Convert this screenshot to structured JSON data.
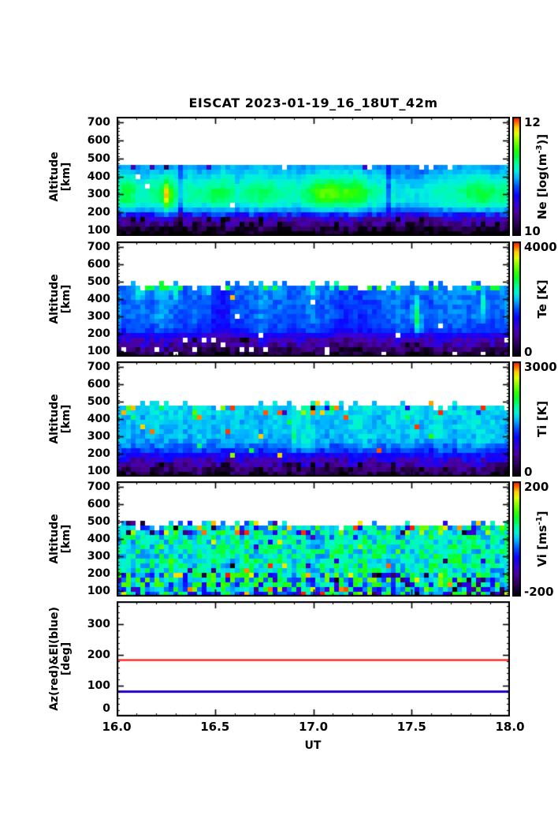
{
  "title": "EISCAT 2023-01-19_16_18UT_42m",
  "chart_data": {
    "type": "heatmap",
    "description": "EISCAT 42m radar UT-altitude spectrograms: Ne, Te, Ti, Vi plus constant Az/El pointing lines",
    "x_axis": {
      "label": "UT",
      "min": 16.0,
      "max": 18.0,
      "ticks": [
        16.0,
        16.5,
        17.0,
        17.5,
        18.0
      ],
      "tick_labels": [
        "16.0",
        "16.5",
        "17.0",
        "17.5",
        "18.0"
      ],
      "minor_step": 0.1
    },
    "altitude_axis": {
      "label_line1": "Altitude",
      "label_line2": "[km]",
      "ymin": 70,
      "ymax": 730,
      "ticks": [
        700,
        600,
        500,
        400,
        300,
        200,
        100
      ],
      "tick_labels": [
        "700",
        "600",
        "500",
        "400",
        "300",
        "200",
        "100"
      ],
      "minor_step": 20
    },
    "panels": [
      {
        "id": "ne",
        "cb_label_pre": "Ne [log(m",
        "cb_label_sup": "-3",
        "cb_label_post": ")]",
        "cb_top": "12",
        "cb_bottom": "10",
        "vmin": 10,
        "vmax": 12,
        "gen": {
          "seed": 11,
          "profile": [
            [
              70,
              10.02
            ],
            [
              100,
              10.06
            ],
            [
              120,
              10.3
            ],
            [
              150,
              10.38
            ],
            [
              175,
              10.58
            ],
            [
              200,
              10.85
            ],
            [
              225,
              11.05
            ],
            [
              260,
              11.18
            ],
            [
              320,
              11.22
            ],
            [
              380,
              11.12
            ],
            [
              430,
              11.0
            ],
            [
              470,
              10.95
            ],
            [
              520,
              10.92
            ]
          ],
          "col_amp": 0.09,
          "noise": 0.05,
          "noise_boost_alt": 205,
          "noise_boost": 3.2,
          "top_alt_base": 455,
          "top_alt_jitter": 18,
          "short_col_prob": 0.08,
          "short_col_drop": 28,
          "features": [
            [
              16.255,
              0.016,
              300,
              72,
              0.48
            ],
            [
              16.26,
              0.05,
              300,
              95,
              0.22
            ],
            [
              17.08,
              0.1,
              305,
              80,
              0.3
            ],
            [
              17.22,
              0.055,
              310,
              70,
              0.2
            ],
            [
              16.5,
              0.07,
              300,
              60,
              0.12
            ],
            [
              16.05,
              0.035,
              310,
              85,
              0.16
            ],
            [
              17.87,
              0.09,
              300,
              75,
              0.16
            ],
            [
              16.75,
              0.05,
              290,
              60,
              0.07
            ],
            [
              17.5,
              0.1,
              300,
              220,
              -0.1
            ],
            [
              16.33,
              0.012,
              300,
              220,
              -0.3
            ],
            [
              17.38,
              0.012,
              300,
              220,
              -0.25
            ],
            [
              16.62,
              0.01,
              300,
              220,
              -0.15
            ]
          ],
          "outliers": [
            {
              "amin": 0,
              "amax": 185,
              "prob": 0.1,
              "lo": 0.0,
              "hi": 0.04
            },
            {
              "amin": 0,
              "amax": 185,
              "prob": 0.035,
              "white": true
            },
            {
              "amin": 425,
              "amax": 520,
              "prob": 0.06,
              "lo": 0.08,
              "hi": 0.28
            },
            {
              "amin": 200,
              "amax": 425,
              "prob": 0.006,
              "white": true
            }
          ]
        }
      },
      {
        "id": "te",
        "cb_label_pre": "Te [K]",
        "cb_label_sup": "",
        "cb_label_post": "",
        "cb_top": "4000",
        "cb_bottom": "0",
        "vmin": 0,
        "vmax": 4000,
        "gen": {
          "seed": 23,
          "profile": [
            [
              70,
              260
            ],
            [
              105,
              430
            ],
            [
              130,
              720
            ],
            [
              160,
              880
            ],
            [
              190,
              1180
            ],
            [
              220,
              1520
            ],
            [
              300,
              1680
            ],
            [
              380,
              1680
            ],
            [
              470,
              1780
            ],
            [
              520,
              1800
            ]
          ],
          "col_amp": 330,
          "noise": 130,
          "noise_boost_alt": 185,
          "noise_boost": 2.6,
          "top_alt_base": 478,
          "top_alt_jitter": 16,
          "short_col_prob": 0.1,
          "short_col_drop": 34,
          "features": [
            [
              16.02,
              0.008,
              320,
              130,
              900
            ],
            [
              16.12,
              0.012,
              435,
              40,
              900
            ],
            [
              17.52,
              0.012,
              320,
              90,
              1200
            ],
            [
              17.54,
              0.02,
              250,
              60,
              500
            ],
            [
              17.86,
              0.01,
              360,
              80,
              700
            ],
            [
              16.46,
              0.012,
              445,
              35,
              800
            ],
            [
              16.3,
              0.01,
              440,
              40,
              600
            ],
            [
              17.0,
              0.012,
              450,
              30,
              500
            ]
          ],
          "outliers": [
            {
              "amin": 440,
              "amax": 520,
              "prob": 0.22,
              "lo": 0.58,
              "hi": 0.72
            },
            {
              "amin": 400,
              "amax": 470,
              "prob": 0.01,
              "lo": 0.92,
              "hi": 1.0
            },
            {
              "amin": 0,
              "amax": 170,
              "prob": 0.05,
              "white": true
            },
            {
              "amin": 0,
              "amax": 170,
              "prob": 0.08,
              "lo": 0.0,
              "hi": 0.05
            },
            {
              "amin": 170,
              "amax": 440,
              "prob": 0.01,
              "white": true
            }
          ]
        }
      },
      {
        "id": "ti",
        "cb_label_pre": "Ti [K]",
        "cb_label_sup": "",
        "cb_label_post": "",
        "cb_top": "3000",
        "cb_bottom": "0",
        "vmin": 0,
        "vmax": 3000,
        "gen": {
          "seed": 37,
          "profile": [
            [
              70,
              200
            ],
            [
              105,
              340
            ],
            [
              130,
              540
            ],
            [
              160,
              720
            ],
            [
              190,
              980
            ],
            [
              230,
              1280
            ],
            [
              280,
              1480
            ],
            [
              470,
              1560
            ],
            [
              520,
              1560
            ]
          ],
          "col_amp": 210,
          "noise": 130,
          "noise_boost_alt": 185,
          "noise_boost": 2.2,
          "top_alt_base": 480,
          "top_alt_jitter": 14,
          "short_col_prob": 0.08,
          "short_col_drop": 30,
          "features": [
            [
              16.4,
              0.012,
              430,
              30,
              900
            ],
            [
              17.1,
              0.01,
              460,
              25,
              800
            ],
            [
              16.9,
              0.015,
              300,
              60,
              300
            ],
            [
              17.6,
              0.02,
              250,
              70,
              -250
            ]
          ],
          "outliers": [
            {
              "amin": 420,
              "amax": 520,
              "prob": 0.05,
              "lo": 0.9,
              "hi": 1.0
            },
            {
              "amin": 420,
              "amax": 520,
              "prob": 0.12,
              "lo": 0.0,
              "hi": 1.0
            },
            {
              "amin": 150,
              "amax": 420,
              "prob": 0.012,
              "lo": 0.9,
              "hi": 1.0
            },
            {
              "amin": 150,
              "amax": 420,
              "prob": 0.02,
              "lo": 0.6,
              "hi": 0.8
            },
            {
              "amin": 0,
              "amax": 150,
              "prob": 0.07,
              "lo": 0.0,
              "hi": 0.05
            },
            {
              "amin": 0,
              "amax": 150,
              "prob": 0.05,
              "white": true
            },
            {
              "amin": 150,
              "amax": 300,
              "prob": 0.015,
              "white": true
            }
          ]
        }
      },
      {
        "id": "vi",
        "cb_label_pre": "Vi [ms",
        "cb_label_sup": "-1",
        "cb_label_post": "]",
        "cb_top": "200",
        "cb_bottom": "-200",
        "vmin": -200,
        "vmax": 200,
        "gen": {
          "seed": 51,
          "profile": [
            [
              70,
              0
            ],
            [
              150,
              15
            ],
            [
              250,
              35
            ],
            [
              350,
              30
            ],
            [
              520,
              20
            ]
          ],
          "col_amp": 22,
          "noise": 48,
          "noise_boost_alt": 215,
          "noise_boost": 2.0,
          "top_alt_base": 480,
          "top_alt_jitter": 14,
          "short_col_prob": 0.06,
          "short_col_drop": 26,
          "features": [],
          "outliers": [
            {
              "amin": 435,
              "amax": 520,
              "prob": 0.5,
              "lo": 0.0,
              "hi": 1.0
            },
            {
              "amin": 215,
              "amax": 435,
              "prob": 0.05,
              "lo": 0.0,
              "hi": 1.0
            },
            {
              "amin": 130,
              "amax": 215,
              "prob": 0.2,
              "lo": 0.0,
              "hi": 1.0
            },
            {
              "amin": 0,
              "amax": 130,
              "prob": 0.33,
              "lo": 0.0,
              "hi": 1.0
            },
            {
              "amin": 0,
              "amax": 130,
              "prob": 0.05,
              "white": true
            },
            {
              "amin": 130,
              "amax": 215,
              "prob": 0.02,
              "white": true
            }
          ]
        }
      }
    ],
    "az_el_panel": {
      "ylabel_line1": "Az(red)&El(blue)",
      "ylabel_line2": "[deg]",
      "ymin": 0,
      "ymax": 375,
      "ticks": [
        0,
        100,
        200,
        300
      ],
      "tick_labels": [
        "0",
        "100",
        "200",
        "300"
      ],
      "minor_step": 20,
      "lines": [
        {
          "name": "azimuth-line",
          "value_deg": 185,
          "color": "#ff0000",
          "width": 2
        },
        {
          "name": "elevation-line",
          "value_deg": 82,
          "color": "#2200cc",
          "width": 3
        }
      ]
    },
    "colormap": "rainbow-black-floor"
  }
}
